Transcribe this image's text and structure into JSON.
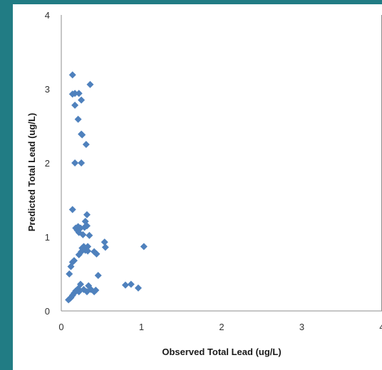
{
  "colors": {
    "frame_accent": "#217c84",
    "marker": "#4f81bd",
    "axis_line": "#8c8c8c"
  },
  "chart_data": {
    "type": "scatter",
    "title": "",
    "xlabel": "Observed Total Lead (ug/L)",
    "ylabel": "Predicted Total Lead (ug/L)",
    "xlim": [
      0,
      4
    ],
    "ylim": [
      0,
      4
    ],
    "x_ticks": [
      "0",
      "1",
      "2",
      "3",
      "4"
    ],
    "y_ticks": [
      "0",
      "1",
      "2",
      "3",
      "4"
    ],
    "grid": false,
    "legend": "none",
    "marker": "diamond",
    "series": [
      {
        "points": [
          [
            0.14,
            3.19
          ],
          [
            0.36,
            3.06
          ],
          [
            0.14,
            2.93
          ],
          [
            0.17,
            2.94
          ],
          [
            0.22,
            2.94
          ],
          [
            0.25,
            2.85
          ],
          [
            0.17,
            2.78
          ],
          [
            0.21,
            2.59
          ],
          [
            0.25,
            2.39
          ],
          [
            0.26,
            2.38
          ],
          [
            0.31,
            2.25
          ],
          [
            0.17,
            2.0
          ],
          [
            0.25,
            2.0
          ],
          [
            0.14,
            1.37
          ],
          [
            0.32,
            1.3
          ],
          [
            0.3,
            1.21
          ],
          [
            0.18,
            1.12
          ],
          [
            0.21,
            1.14
          ],
          [
            0.24,
            1.12
          ],
          [
            0.29,
            1.13
          ],
          [
            0.32,
            1.15
          ],
          [
            0.2,
            1.09
          ],
          [
            0.22,
            1.06
          ],
          [
            0.27,
            1.03
          ],
          [
            0.35,
            1.02
          ],
          [
            0.54,
            0.93
          ],
          [
            0.55,
            0.86
          ],
          [
            1.03,
            0.87
          ],
          [
            0.28,
            0.87
          ],
          [
            0.33,
            0.87
          ],
          [
            0.26,
            0.85
          ],
          [
            0.3,
            0.82
          ],
          [
            0.25,
            0.8
          ],
          [
            0.33,
            0.81
          ],
          [
            0.41,
            0.8
          ],
          [
            0.44,
            0.77
          ],
          [
            0.22,
            0.76
          ],
          [
            0.16,
            0.68
          ],
          [
            0.14,
            0.66
          ],
          [
            0.12,
            0.6
          ],
          [
            0.1,
            0.5
          ],
          [
            0.46,
            0.48
          ],
          [
            0.24,
            0.36
          ],
          [
            0.34,
            0.34
          ],
          [
            0.8,
            0.35
          ],
          [
            0.87,
            0.36
          ],
          [
            0.96,
            0.31
          ],
          [
            0.21,
            0.3
          ],
          [
            0.28,
            0.29
          ],
          [
            0.37,
            0.29
          ],
          [
            0.41,
            0.26
          ],
          [
            0.43,
            0.28
          ],
          [
            0.18,
            0.27
          ],
          [
            0.22,
            0.26
          ],
          [
            0.32,
            0.26
          ],
          [
            0.16,
            0.24
          ],
          [
            0.14,
            0.21
          ],
          [
            0.12,
            0.18
          ],
          [
            0.11,
            0.17
          ],
          [
            0.09,
            0.15
          ]
        ]
      }
    ]
  }
}
